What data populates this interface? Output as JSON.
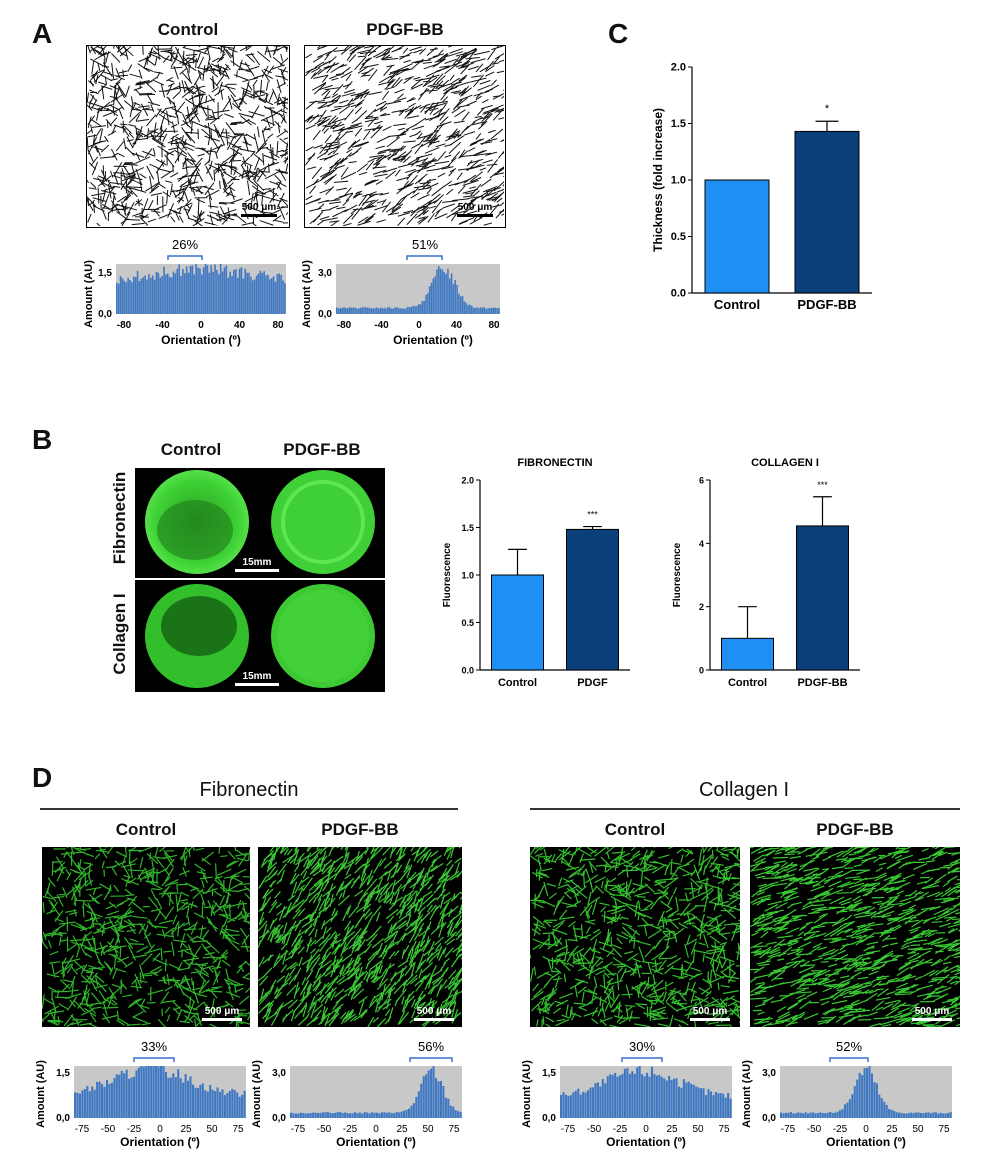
{
  "panels": {
    "a": "A",
    "b": "B",
    "c": "C",
    "d": "D"
  },
  "panel_a": {
    "col_control": "Control",
    "col_pdgf": "PDGF-BB",
    "scale_label_control": "500 μm",
    "scale_label_pdgf": "500 μm",
    "hist_control": {
      "ylabel": "Amount (AU)",
      "xlabel": "Orientation (º)",
      "ymax_label": "1,5",
      "ymin_label": "0,0",
      "xticks": [
        "-80",
        "-40",
        "0",
        "40",
        "80"
      ],
      "pct": "26%"
    },
    "hist_pdgf": {
      "ylabel": "Amount (AU)",
      "xlabel": "Orientation (º)",
      "ymax_label": "3,0",
      "ymin_label": "0,0",
      "xticks": [
        "-80",
        "-40",
        "0",
        "40",
        "80"
      ],
      "pct": "51%"
    }
  },
  "panel_b": {
    "col_control": "Control",
    "col_pdgf": "PDGF-BB",
    "row_fibronectin": "Fibronectin",
    "row_collagen": "Collagen I",
    "scale_label": "15mm",
    "scale_label_2": "15mm"
  },
  "panel_d": {
    "fibronectin_title": "Fibronectin",
    "collagen_title": "Collagen I",
    "fn_control": "Control",
    "fn_pdgf": "PDGF-BB",
    "col_control": "Control",
    "col_pdgf": "PDGF-BB",
    "scale_label": "500 μm",
    "hists": [
      {
        "ylabel": "Amount (AU)",
        "xlabel": "Orientation (º)",
        "ymax_label": "1,5",
        "ymin_label": "0,0",
        "xticks": [
          "-75",
          "-50",
          "-25",
          "0",
          "25",
          "50",
          "75"
        ],
        "pct": "33%"
      },
      {
        "ylabel": "Amount (AU)",
        "xlabel": "Orientation (º)",
        "ymax_label": "3,0",
        "ymin_label": "0,0",
        "xticks": [
          "-75",
          "-50",
          "-25",
          "0",
          "25",
          "50",
          "75"
        ],
        "pct": "56%"
      },
      {
        "ylabel": "Amount (AU)",
        "xlabel": "Orientation (º)",
        "ymax_label": "1,5",
        "ymin_label": "0,0",
        "xticks": [
          "-75",
          "-50",
          "-25",
          "0",
          "25",
          "50",
          "75"
        ],
        "pct": "30%"
      },
      {
        "ylabel": "Amount (AU)",
        "xlabel": "Orientation (º)",
        "ymax_label": "3,0",
        "ymin_label": "0,0",
        "xticks": [
          "-75",
          "-50",
          "-25",
          "0",
          "25",
          "50",
          "75"
        ],
        "pct": "52%"
      }
    ]
  },
  "colors": {
    "control": "#1f8ff3",
    "pdgf": "#0b3f7c",
    "hist_bar": "#3f78c2",
    "hist_bg": "#c8c8c8",
    "micro_green": "#39d233"
  },
  "chart_data": [
    {
      "type": "bar",
      "title": "",
      "categories": [
        "Control",
        "PDGF-BB"
      ],
      "values": [
        1.0,
        1.43
      ],
      "errors": [
        0,
        0.09
      ],
      "significance": [
        "",
        "*"
      ],
      "xlabel": "",
      "ylabel": "Thickness (fold increase)",
      "ylim": [
        0,
        2.0
      ],
      "yticks": [
        "0.0",
        "0.5",
        "1.0",
        "1.5",
        "2.0"
      ],
      "grid": false
    },
    {
      "type": "bar",
      "title": "FIBRONECTIN",
      "categories": [
        "Control",
        "PDGF"
      ],
      "values": [
        1.0,
        1.48
      ],
      "errors": [
        0.27,
        0.03
      ],
      "significance": [
        "",
        "***"
      ],
      "xlabel": "",
      "ylabel": "Fluorescence",
      "ylim": [
        0,
        2.0
      ],
      "yticks": [
        "0.0",
        "0.5",
        "1.0",
        "1.5",
        "2.0"
      ],
      "grid": false
    },
    {
      "type": "bar",
      "title": "COLLAGEN I",
      "categories": [
        "Control",
        "PDGF-BB"
      ],
      "values": [
        1.0,
        4.55
      ],
      "errors": [
        1.0,
        0.92
      ],
      "significance": [
        "",
        "***"
      ],
      "xlabel": "",
      "ylabel": "Fluorescence",
      "ylim": [
        0,
        6
      ],
      "yticks": [
        "0",
        "2",
        "4",
        "6"
      ],
      "grid": false
    }
  ]
}
